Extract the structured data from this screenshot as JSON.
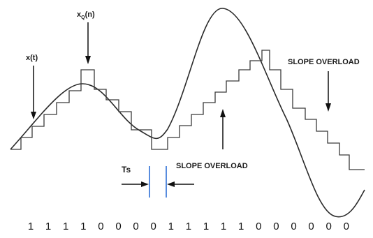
{
  "labels": {
    "x_t": "x(t)",
    "xq_main": "x",
    "xq_sub": "Q",
    "xq_tail": "(n)",
    "slope_overload_right": "SLOPE OVERLOAD",
    "slope_overload_middle": "SLOPE OVERLOAD",
    "ts": "Ts"
  },
  "bits": [
    "1",
    "1",
    "1",
    "1",
    "0",
    "0",
    "0",
    "0",
    "1",
    "1",
    "1",
    "1",
    "1",
    "0",
    "0",
    "0",
    "0",
    "0",
    "0"
  ],
  "colors": {
    "curve": "#2a2a2a",
    "staircase": "#3a3a3a",
    "ts_marker": "#2f6fd6",
    "text": "#111111"
  }
}
